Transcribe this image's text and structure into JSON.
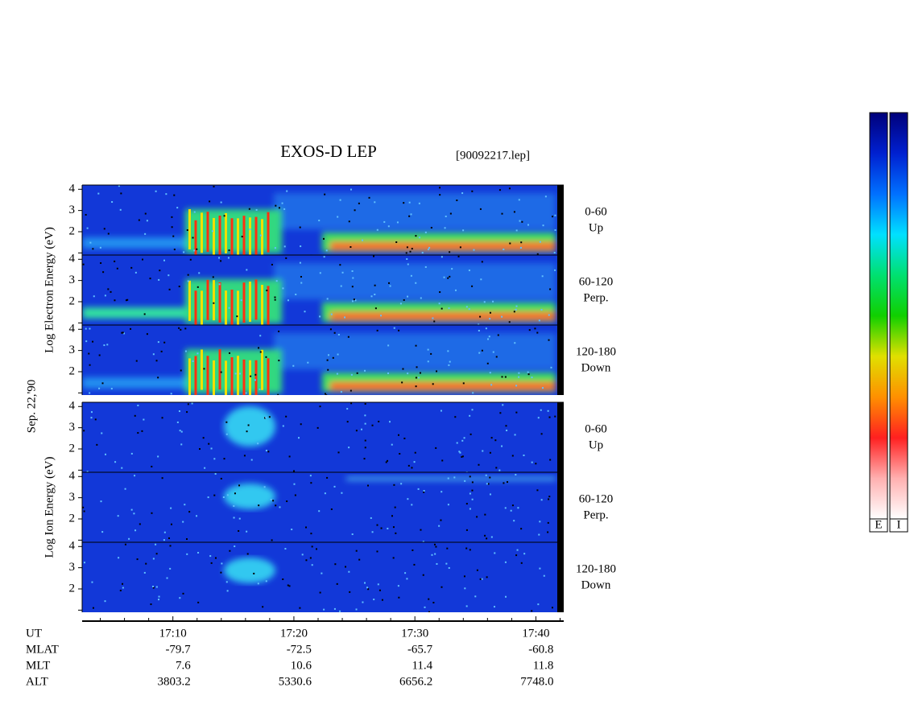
{
  "chart_data": {
    "type": "spectrogram",
    "title": "EXOS-D LEP",
    "file_label": "[90092217.lep]",
    "date_label": "Sep. 22,'90",
    "groups": [
      {
        "label": "Log  Electron  Energy (eV)",
        "panels": [
          {
            "labels": [
              "0-60",
              "Up"
            ]
          },
          {
            "labels": [
              "60-120",
              "Perp."
            ]
          },
          {
            "labels": [
              "120-180",
              "Down"
            ]
          }
        ]
      },
      {
        "label": "Log  Ion  Energy (eV)",
        "panels": [
          {
            "labels": [
              "0-60",
              "Up"
            ]
          },
          {
            "labels": [
              "60-120",
              "Perp."
            ]
          },
          {
            "labels": [
              "120-180",
              "Down"
            ]
          }
        ]
      }
    ],
    "ylim": [
      0.9,
      4.2
    ],
    "yticks": [
      2,
      3,
      4
    ],
    "yminorticks": [
      1
    ],
    "xlim": [
      2.5,
      42.3
    ],
    "xticks": [
      {
        "value": 10,
        "label": "17:10"
      },
      {
        "value": 20,
        "label": "17:20"
      },
      {
        "value": 30,
        "label": "17:30"
      },
      {
        "value": 40,
        "label": "17:40"
      }
    ],
    "xminorticks": [
      4,
      6,
      8,
      12,
      14,
      16,
      18,
      22,
      24,
      26,
      28,
      32,
      34,
      36,
      38,
      42
    ],
    "rows": [
      {
        "name": "UT"
      },
      {
        "name": "MLAT",
        "values": [
          -79.7,
          -72.5,
          -65.7,
          -60.8
        ]
      },
      {
        "name": "MLT",
        "values": [
          7.6,
          10.6,
          11.4,
          11.8
        ]
      },
      {
        "name": "ALT",
        "values": [
          3803.2,
          5330.6,
          6656.2,
          7748.0
        ],
        "value_labels": [
          "3803.2",
          "5330.6",
          "6656.2",
          "7748.0"
        ]
      }
    ],
    "colorbars": [
      "E",
      "I"
    ],
    "colormap": [
      "#00007a",
      "#0020d0",
      "#0070ff",
      "#00e0ff",
      "#00e070",
      "#10d000",
      "#e0e000",
      "#ff9000",
      "#ff2020",
      "#ffb0b0",
      "#ffffff"
    ]
  }
}
